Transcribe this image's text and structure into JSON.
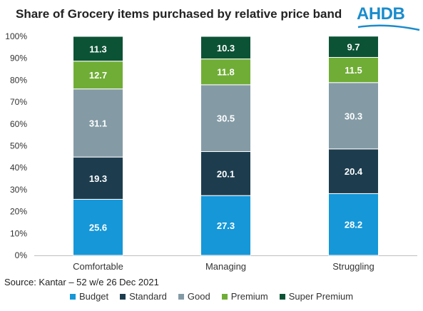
{
  "title": "Share of Grocery items purchased by relative price band",
  "logo": {
    "text": "AHDB",
    "color": "#1a8ccc"
  },
  "source": "Source: Kantar – 52 w/e 26 Dec 2021",
  "chart_data": {
    "type": "bar",
    "stacked": true,
    "categories": [
      "Comfortable",
      "Managing",
      "Struggling"
    ],
    "series": [
      {
        "name": "Budget",
        "color": "#1597d8",
        "values": [
          25.6,
          27.3,
          28.2
        ]
      },
      {
        "name": "Standard",
        "color": "#1d3d4f",
        "values": [
          19.3,
          20.1,
          20.4
        ]
      },
      {
        "name": "Good",
        "color": "#849ba6",
        "values": [
          31.1,
          30.5,
          30.3
        ]
      },
      {
        "name": "Premium",
        "color": "#70ad36",
        "values": [
          12.7,
          11.8,
          11.5
        ]
      },
      {
        "name": "Super Premium",
        "color": "#0c5336",
        "values": [
          11.3,
          10.3,
          9.7
        ]
      }
    ],
    "yticks": [
      "0%",
      "10%",
      "20%",
      "30%",
      "40%",
      "50%",
      "60%",
      "70%",
      "80%",
      "90%",
      "100%"
    ],
    "ylim": [
      0,
      100
    ],
    "grid": false,
    "legend": "bottom"
  }
}
